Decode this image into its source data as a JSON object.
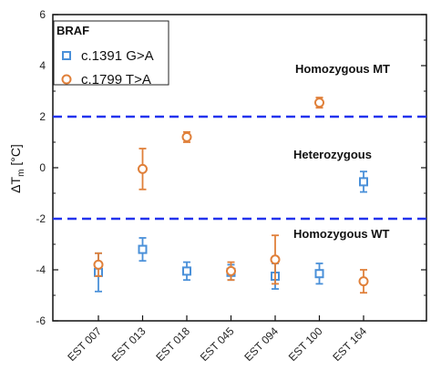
{
  "chart_data": {
    "type": "scatter",
    "title": "",
    "xlabel": "",
    "ylabel_main": "ΔT",
    "ylabel_sub": "m",
    "ylabel_unit": " [°C]",
    "ylim": [
      -6,
      6
    ],
    "yticks": [
      -6,
      -4,
      -2,
      0,
      2,
      4,
      6
    ],
    "yticks_minor": [
      -5,
      -3,
      -1,
      1,
      3,
      5
    ],
    "categories": [
      "EST 007",
      "EST 013",
      "EST 018",
      "EST 045",
      "EST 094",
      "EST 100",
      "EST 164"
    ],
    "grid": false,
    "legend_title": "BRAF",
    "legend_position": "top-left",
    "series": [
      {
        "name": "c.1391 G>A",
        "marker": "square",
        "color": "#4a90d9",
        "values": [
          -4.1,
          -3.2,
          -4.05,
          -4.1,
          -4.25,
          -4.15,
          -0.55
        ],
        "errors": [
          0.75,
          0.45,
          0.35,
          0.3,
          0.5,
          0.4,
          0.4
        ]
      },
      {
        "name": "c.1799 T>A",
        "marker": "circle",
        "color": "#e0803a",
        "values": [
          -3.8,
          -0.05,
          1.2,
          -4.05,
          -3.6,
          2.55,
          -4.45
        ],
        "errors": [
          0.45,
          0.8,
          0.2,
          0.35,
          0.95,
          0.2,
          0.45
        ]
      }
    ],
    "reference_lines": [
      {
        "y": 2,
        "color": "#2233ee",
        "style": "dashed"
      },
      {
        "y": -2,
        "color": "#2233ee",
        "style": "dashed"
      }
    ],
    "annotations": [
      {
        "text": "Homozygous MT"
      },
      {
        "text": "Heterozygous"
      },
      {
        "text": "Homozygous WT"
      }
    ]
  }
}
